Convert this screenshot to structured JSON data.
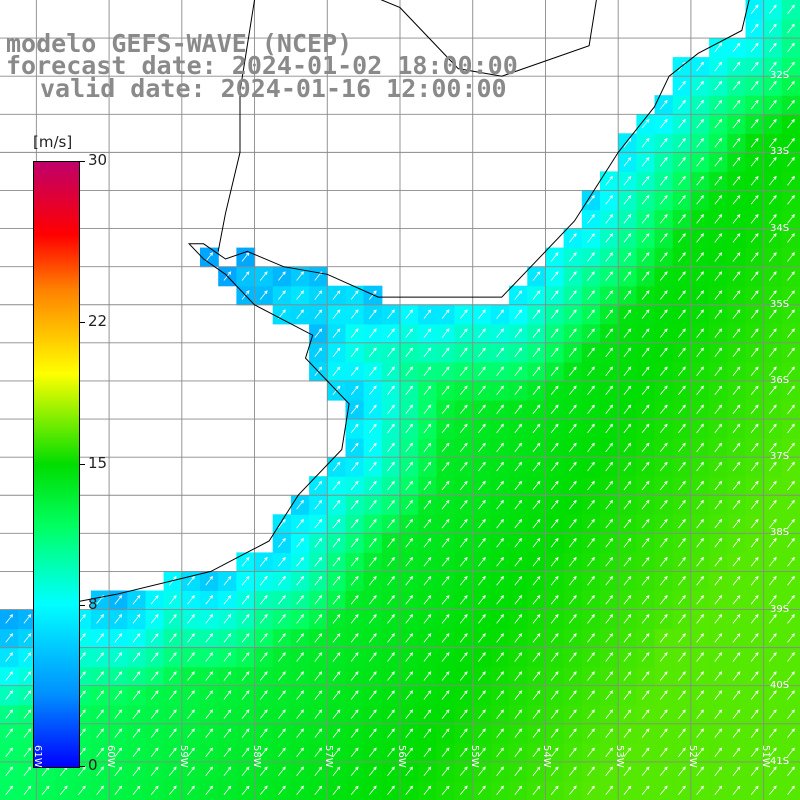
{
  "title": {
    "line1": "modelo GEFS-WAVE (NCEP)",
    "line2": "forecast date: 2024-01-02 18:00:00",
    "line3": "valid date: 2024-01-16 12:00:00"
  },
  "colorbar": {
    "unit": "[m/s]",
    "min": 0,
    "max": 30,
    "ticks": [
      {
        "label": "30",
        "value": 30
      },
      {
        "label": "22",
        "value": 22
      },
      {
        "label": "15",
        "value": 15
      },
      {
        "label": "8",
        "value": 8
      },
      {
        "label": "0",
        "value": 0
      }
    ],
    "colors": [
      "#0000ff",
      "#0090ff",
      "#00ffff",
      "#00ff60",
      "#00dd00",
      "#ffff00",
      "#ff8000",
      "#ff0000",
      "#c0006a"
    ]
  },
  "lat_labels": [
    "32S",
    "33S",
    "34S",
    "35S",
    "36S",
    "37S",
    "38S",
    "39S",
    "40S",
    "41S"
  ],
  "lon_labels": [
    "61W",
    "60W",
    "59W",
    "58W",
    "57W",
    "56W",
    "55W",
    "54W",
    "53W",
    "52W",
    "51W"
  ],
  "map": {
    "lon_range": [
      -61.5,
      -50.5
    ],
    "lat_range": [
      -41.5,
      -31.0
    ],
    "wind_direction_note": "arrows point toward north-east"
  }
}
